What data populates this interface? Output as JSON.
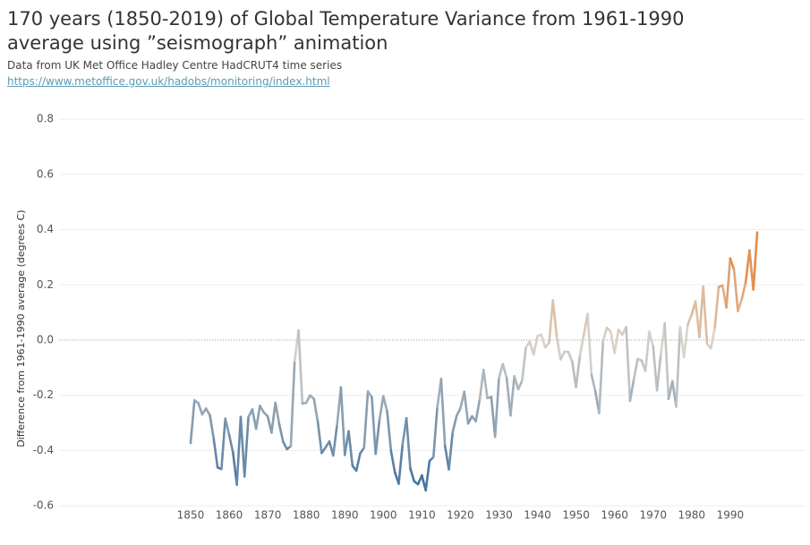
{
  "chart_data": {
    "type": "line",
    "title": "170 years (1850-2019) of Global Temperature Variance from 1961-1990 average using ”seismograph” animation",
    "subtitle": "Data from UK Met Office Hadley Centre HadCRUT4 time series",
    "source_url": "https://www.metoffice.gov.uk/hadobs/monitoring/index.html",
    "y_label": "Difference from 1961-1990 average (degrees C)",
    "x": [
      1850,
      1851,
      1852,
      1853,
      1854,
      1855,
      1856,
      1857,
      1858,
      1859,
      1860,
      1861,
      1862,
      1863,
      1864,
      1865,
      1866,
      1867,
      1868,
      1869,
      1870,
      1871,
      1872,
      1873,
      1874,
      1875,
      1876,
      1877,
      1878,
      1879,
      1880,
      1881,
      1882,
      1883,
      1884,
      1885,
      1886,
      1887,
      1888,
      1889,
      1890,
      1891,
      1892,
      1893,
      1894,
      1895,
      1896,
      1897,
      1898,
      1899,
      1900,
      1901,
      1902,
      1903,
      1904,
      1905,
      1906,
      1907,
      1908,
      1909,
      1910,
      1911,
      1912,
      1913,
      1914,
      1915,
      1916,
      1917,
      1918,
      1919,
      1920,
      1921,
      1922,
      1923,
      1924,
      1925,
      1926,
      1927,
      1928,
      1929,
      1930,
      1931,
      1932,
      1933,
      1934,
      1935,
      1936,
      1937,
      1938,
      1939,
      1940,
      1941,
      1942,
      1943,
      1944,
      1945,
      1946,
      1947,
      1948,
      1949,
      1950,
      1951,
      1952,
      1953,
      1954,
      1955,
      1956,
      1957,
      1958,
      1959,
      1960,
      1961,
      1962,
      1963,
      1964,
      1965,
      1966,
      1967,
      1968,
      1969,
      1970,
      1971,
      1972,
      1973,
      1974,
      1975,
      1976,
      1977,
      1978,
      1979,
      1980,
      1981,
      1982,
      1983,
      1984,
      1985,
      1986,
      1987,
      1988,
      1989,
      1990,
      1991,
      1992,
      1993,
      1994,
      1995,
      1996,
      1997
    ],
    "values": [
      -0.373,
      -0.218,
      -0.228,
      -0.269,
      -0.248,
      -0.272,
      -0.358,
      -0.461,
      -0.467,
      -0.284,
      -0.343,
      -0.407,
      -0.524,
      -0.278,
      -0.494,
      -0.279,
      -0.251,
      -0.321,
      -0.238,
      -0.262,
      -0.276,
      -0.335,
      -0.227,
      -0.304,
      -0.368,
      -0.395,
      -0.384,
      -0.075,
      0.035,
      -0.23,
      -0.227,
      -0.2,
      -0.213,
      -0.296,
      -0.409,
      -0.389,
      -0.367,
      -0.418,
      -0.307,
      -0.171,
      -0.416,
      -0.33,
      -0.455,
      -0.473,
      -0.41,
      -0.39,
      -0.186,
      -0.206,
      -0.412,
      -0.289,
      -0.203,
      -0.259,
      -0.402,
      -0.479,
      -0.52,
      -0.377,
      -0.283,
      -0.465,
      -0.511,
      -0.522,
      -0.49,
      -0.544,
      -0.437,
      -0.424,
      -0.244,
      -0.141,
      -0.383,
      -0.468,
      -0.333,
      -0.275,
      -0.247,
      -0.187,
      -0.302,
      -0.276,
      -0.294,
      -0.215,
      -0.108,
      -0.21,
      -0.206,
      -0.35,
      -0.137,
      -0.087,
      -0.137,
      -0.273,
      -0.131,
      -0.178,
      -0.147,
      -0.026,
      -0.006,
      -0.052,
      0.014,
      0.02,
      -0.027,
      -0.01,
      0.144,
      0.011,
      -0.07,
      -0.042,
      -0.043,
      -0.078,
      -0.17,
      -0.057,
      0.018,
      0.095,
      -0.125,
      -0.185,
      -0.265,
      -0.004,
      0.045,
      0.03,
      -0.047,
      0.037,
      0.02,
      0.047,
      -0.22,
      -0.142,
      -0.068,
      -0.074,
      -0.112,
      0.031,
      -0.023,
      -0.182,
      -0.052,
      0.061,
      -0.213,
      -0.149,
      -0.241,
      0.047,
      -0.062,
      0.057,
      0.092,
      0.14,
      0.011,
      0.194,
      -0.014,
      -0.03,
      0.045,
      0.192,
      0.198,
      0.118,
      0.296,
      0.254,
      0.105,
      0.148,
      0.208,
      0.325,
      0.183,
      0.39
    ],
    "colors": {
      "low": "#3d6e9c",
      "mid": "#d9d3ca",
      "high": "#e5731f"
    },
    "xlim": [
      1810,
      2010
    ],
    "xticks": [
      1850,
      1860,
      1870,
      1880,
      1890,
      1900,
      1910,
      1920,
      1930,
      1940,
      1950,
      1960,
      1970,
      1980,
      1990
    ],
    "ylim": [
      -0.6,
      0.8
    ],
    "yticks": [
      -0.6,
      -0.4,
      -0.2,
      {
        "value": 0,
        "label": "0.0"
      },
      0.2,
      0.4,
      0.6,
      0.8
    ],
    "grid": true
  }
}
